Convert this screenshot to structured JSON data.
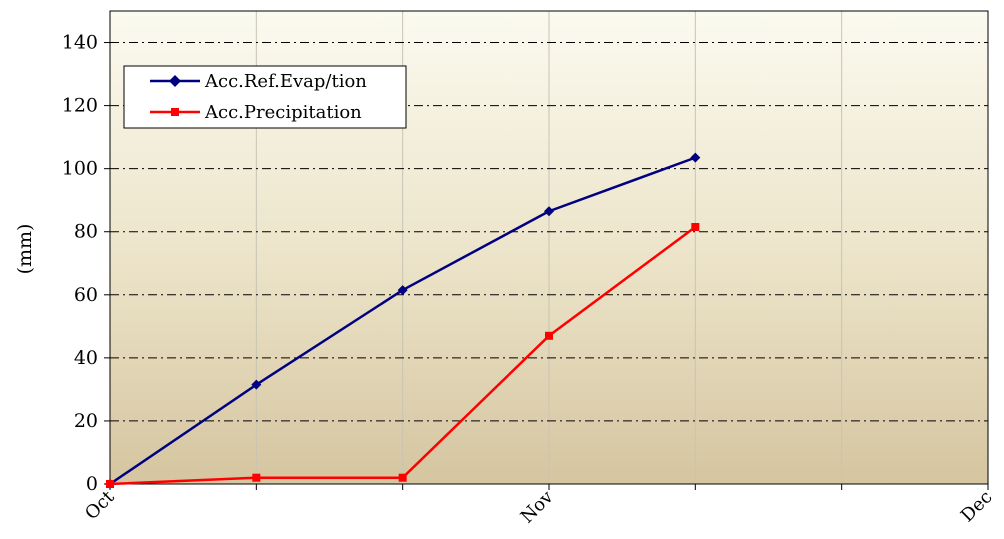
{
  "chart_data": {
    "type": "line",
    "ylabel": "(mm)",
    "ylim": [
      0,
      150
    ],
    "y_ticks": [
      0,
      20,
      40,
      60,
      80,
      100,
      120,
      140
    ],
    "x_tick_labels": [
      "Oct",
      "Nov",
      "Dec"
    ],
    "x_positions": [
      0,
      1,
      2,
      3,
      4,
      5,
      6
    ],
    "grid": "horizontal dash-dot lines; vertical solid light lines",
    "legend_position": "top-left",
    "series": [
      {
        "name": "Acc.Ref.Evap/tion",
        "color": "#000080",
        "marker": "diamond",
        "x": [
          0,
          1,
          2,
          3,
          4
        ],
        "values": [
          0,
          31.5,
          61.5,
          86.5,
          103.5
        ]
      },
      {
        "name": "Acc.Precipitation",
        "color": "#ff0000",
        "marker": "square",
        "x": [
          0,
          1,
          2,
          3,
          4
        ],
        "values": [
          0,
          2,
          2,
          47,
          81.5
        ]
      }
    ]
  }
}
